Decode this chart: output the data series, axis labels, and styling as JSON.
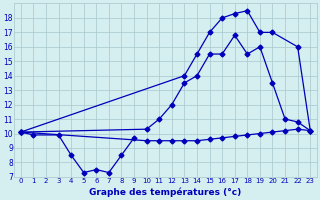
{
  "title": "Graphe des températures (°c)",
  "background_color": "#d5eef0",
  "grid_color": "#a8c8cc",
  "line_color": "#0000bb",
  "ylim": [
    7,
    19
  ],
  "xlim": [
    -0.5,
    23.5
  ],
  "yticks": [
    7,
    8,
    9,
    10,
    11,
    12,
    13,
    14,
    15,
    16,
    17,
    18
  ],
  "xticks": [
    0,
    1,
    2,
    3,
    4,
    5,
    6,
    7,
    8,
    9,
    10,
    11,
    12,
    13,
    14,
    15,
    16,
    17,
    18,
    19,
    20,
    21,
    22,
    23
  ],
  "series_bottom": {
    "x": [
      0,
      1,
      3,
      4,
      5,
      6,
      7,
      8,
      9
    ],
    "y": [
      10.1,
      9.9,
      9.9,
      8.5,
      7.3,
      7.5,
      7.3,
      8.5,
      9.7
    ]
  },
  "series_top": {
    "x": [
      0,
      13,
      14,
      15,
      16,
      17,
      18,
      19,
      20,
      22,
      23
    ],
    "y": [
      10.1,
      14.0,
      15.5,
      17.0,
      18.0,
      18.3,
      18.5,
      17.0,
      17.0,
      16.0,
      10.2
    ]
  },
  "series_mid_upper": {
    "x": [
      0,
      10,
      11,
      12,
      13,
      14,
      15,
      16,
      17,
      18,
      19,
      20,
      21,
      22,
      23
    ],
    "y": [
      10.1,
      10.3,
      11.0,
      12.0,
      13.5,
      14.0,
      15.5,
      15.5,
      16.8,
      15.5,
      16.0,
      13.5,
      11.0,
      10.8,
      10.2
    ]
  },
  "series_min": {
    "x": [
      0,
      10,
      11,
      12,
      13,
      14,
      15,
      16,
      17,
      18,
      19,
      20,
      21,
      22,
      23
    ],
    "y": [
      10.1,
      9.5,
      9.5,
      9.5,
      9.5,
      9.5,
      9.6,
      9.7,
      9.8,
      9.9,
      10.0,
      10.1,
      10.2,
      10.3,
      10.2
    ]
  }
}
